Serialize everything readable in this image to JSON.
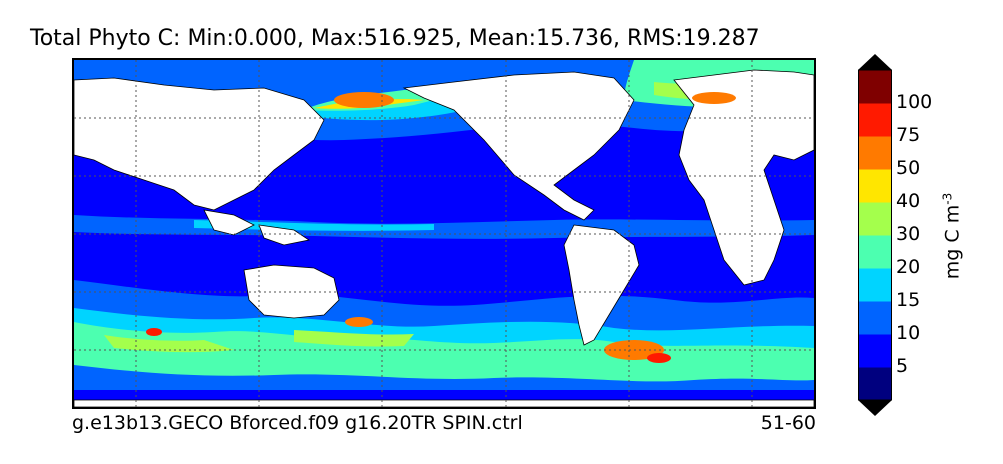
{
  "title": "Total Phyto C: Min:0.000, Max:516.925, Mean:15.736, RMS:19.287",
  "footer": {
    "case_name": "g.e13b13.GECO Bforced.f09 g16.20TR SPIN.ctrl",
    "years": "51-60"
  },
  "colorbar": {
    "unit_base": "mg C m",
    "unit_exponent": "-3",
    "levels": [
      "5",
      "10",
      "15",
      "20",
      "30",
      "40",
      "50",
      "75",
      "100"
    ],
    "colors": [
      "#00007f",
      "#0000ff",
      "#0064ff",
      "#00d4ff",
      "#4cffb0",
      "#a4ff4c",
      "#ffe600",
      "#ff7a00",
      "#ff1a00",
      "#7f0000"
    ],
    "under_color": "#000000",
    "over_color": "#000000"
  },
  "map": {
    "land_color": "#ffffff",
    "ocean_base_color": "#0000ff",
    "gridlines": "dotted",
    "projection": "cylindrical, Pacific-centered"
  }
}
